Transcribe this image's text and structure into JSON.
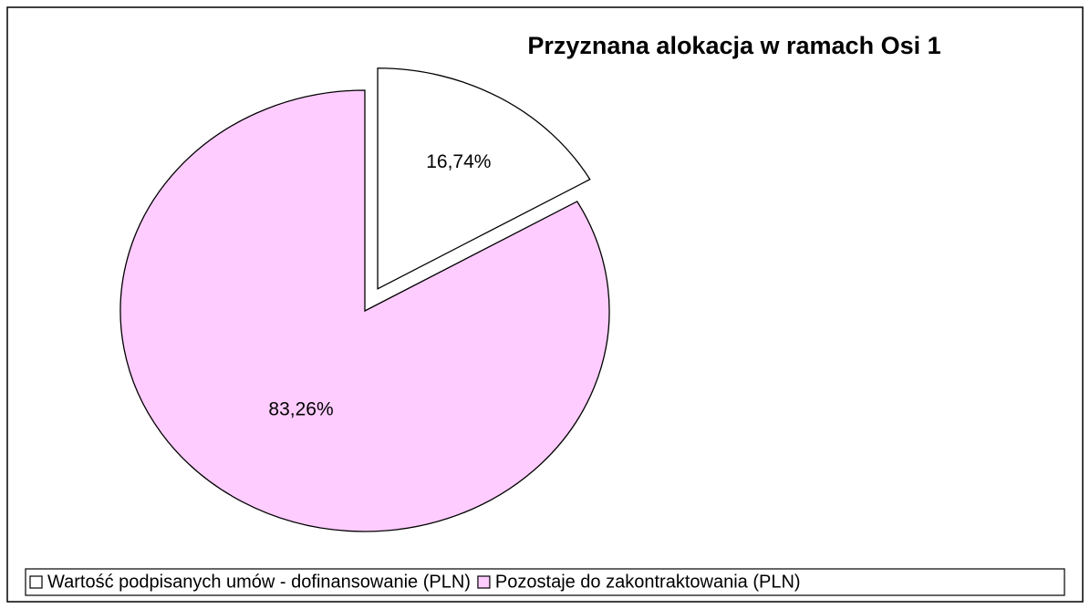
{
  "chart_data": {
    "type": "pie",
    "title": "Przyznana alokacja w ramach Osi 1",
    "categories": [
      "Wartość podpisanych umów - dofinansowanie (PLN)",
      "Pozostaje do zakontraktowania (PLN)"
    ],
    "values": [
      16.74,
      83.26
    ],
    "value_labels": [
      "16,74%",
      "83,26%"
    ],
    "colors": [
      "#ffffff",
      "#ffccff"
    ],
    "legend": "bottom"
  }
}
